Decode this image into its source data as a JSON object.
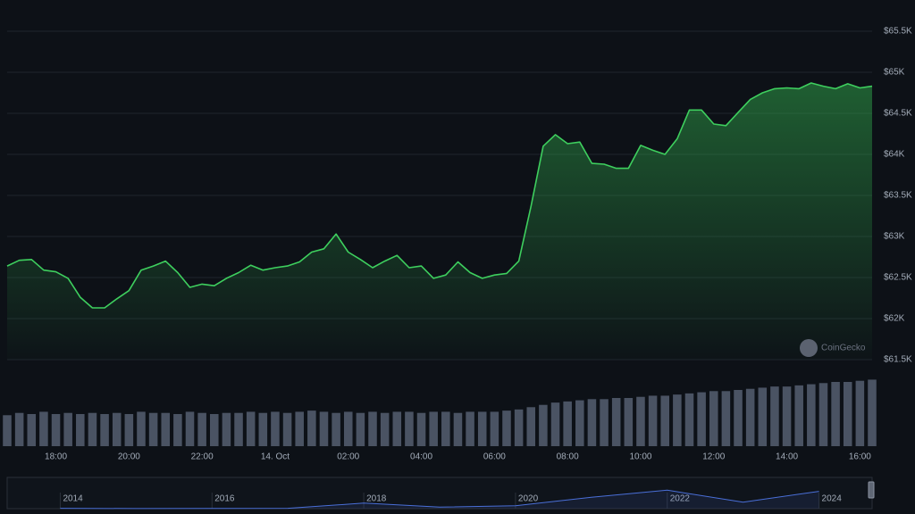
{
  "chart_data": {
    "type": "line",
    "color": "#3ecf5e",
    "grid": true,
    "watermark": "CoinGecko",
    "x": [
      "13. Oct 16:40",
      "13. Oct 17:00",
      "13. Oct 17:20",
      "13. Oct 17:40",
      "13. Oct 18:00",
      "13. Oct 18:20",
      "13. Oct 18:40",
      "13. Oct 19:00",
      "13. Oct 19:20",
      "13. Oct 19:40",
      "13. Oct 20:00",
      "13. Oct 20:20",
      "13. Oct 20:40",
      "13. Oct 21:00",
      "13. Oct 21:20",
      "13. Oct 21:40",
      "13. Oct 22:00",
      "13. Oct 22:20",
      "13. Oct 22:40",
      "13. Oct 23:00",
      "13. Oct 23:20",
      "13. Oct 23:40",
      "14. Oct 00:00",
      "14. Oct 00:20",
      "14. Oct 00:40",
      "14. Oct 01:00",
      "14. Oct 01:20",
      "14. Oct 01:40",
      "14. Oct 02:00",
      "14. Oct 02:20",
      "14. Oct 02:40",
      "14. Oct 03:00",
      "14. Oct 03:20",
      "14. Oct 03:40",
      "14. Oct 04:00",
      "14. Oct 04:20",
      "14. Oct 04:40",
      "14. Oct 05:00",
      "14. Oct 05:20",
      "14. Oct 05:40",
      "14. Oct 06:00",
      "14. Oct 06:20",
      "14. Oct 06:40",
      "14. Oct 07:00",
      "14. Oct 07:20",
      "14. Oct 07:40",
      "14. Oct 08:00",
      "14. Oct 08:20",
      "14. Oct 08:40",
      "14. Oct 09:00",
      "14. Oct 09:20",
      "14. Oct 09:40",
      "14. Oct 10:00",
      "14. Oct 10:20",
      "14. Oct 10:40",
      "14. Oct 11:00",
      "14. Oct 11:20",
      "14. Oct 11:40",
      "14. Oct 12:00",
      "14. Oct 12:20",
      "14. Oct 12:40",
      "14. Oct 13:00",
      "14. Oct 13:20",
      "14. Oct 13:40",
      "14. Oct 14:00",
      "14. Oct 14:20",
      "14. Oct 14:40",
      "14. Oct 15:00",
      "14. Oct 15:20",
      "14. Oct 15:40",
      "14. Oct 16:00",
      "14. Oct 16:20"
    ],
    "values": [
      62640,
      62710,
      62720,
      62590,
      62570,
      62490,
      62260,
      62130,
      62130,
      62240,
      62340,
      62590,
      62640,
      62700,
      62560,
      62380,
      62420,
      62400,
      62490,
      62560,
      62650,
      62590,
      62620,
      62640,
      62690,
      62810,
      62850,
      63030,
      62810,
      62720,
      62620,
      62700,
      62770,
      62620,
      62640,
      62490,
      62530,
      62690,
      62560,
      62490,
      62530,
      62550,
      62700,
      63370,
      64100,
      64240,
      64130,
      64150,
      63890,
      63880,
      63830,
      63830,
      64110,
      64050,
      64000,
      64190,
      64540,
      64540,
      64370,
      64350,
      64510,
      64670,
      64750,
      64800,
      64810,
      64800,
      64870,
      64830,
      64800,
      64860,
      64810,
      64830
    ],
    "ylim": [
      61500,
      65500
    ],
    "yticks": [
      {
        "value": 61500,
        "label": "$61.5K"
      },
      {
        "value": 62000,
        "label": "$62K"
      },
      {
        "value": 62500,
        "label": "$62.5K"
      },
      {
        "value": 63000,
        "label": "$63K"
      },
      {
        "value": 63500,
        "label": "$63.5K"
      },
      {
        "value": 64000,
        "label": "$64K"
      },
      {
        "value": 64500,
        "label": "$64.5K"
      },
      {
        "value": 65000,
        "label": "$65K"
      },
      {
        "value": 65500,
        "label": "$65.5K"
      }
    ],
    "xticks": [
      {
        "value": "13. Oct 18:00",
        "label": "18:00"
      },
      {
        "value": "13. Oct 20:00",
        "label": "20:00"
      },
      {
        "value": "13. Oct 22:00",
        "label": "22:00"
      },
      {
        "value": "14. Oct 00:00",
        "label": "14. Oct"
      },
      {
        "value": "14. Oct 02:00",
        "label": "02:00"
      },
      {
        "value": "14. Oct 04:00",
        "label": "04:00"
      },
      {
        "value": "14. Oct 06:00",
        "label": "06:00"
      },
      {
        "value": "14. Oct 08:00",
        "label": "08:00"
      },
      {
        "value": "14. Oct 10:00",
        "label": "10:00"
      },
      {
        "value": "14. Oct 12:00",
        "label": "12:00"
      },
      {
        "value": "14. Oct 14:00",
        "label": "14:00"
      },
      {
        "value": "14. Oct 16:00",
        "label": "16:00"
      }
    ],
    "volume": {
      "color": "#4a5363",
      "ylim": [
        0,
        70
      ],
      "values": [
        27,
        29,
        28,
        30,
        28,
        29,
        28,
        29,
        28,
        29,
        28,
        30,
        29,
        29,
        28,
        30,
        29,
        28,
        29,
        29,
        30,
        29,
        30,
        29,
        30,
        31,
        30,
        29,
        30,
        29,
        30,
        29,
        30,
        30,
        29,
        30,
        30,
        29,
        30,
        30,
        30,
        31,
        32,
        34,
        36,
        38,
        39,
        40,
        41,
        41,
        42,
        42,
        43,
        44,
        44,
        45,
        46,
        47,
        48,
        48,
        49,
        50,
        51,
        52,
        52,
        53,
        54,
        55,
        56,
        56,
        57,
        58
      ]
    },
    "navigator": {
      "color": "#4a6fd8",
      "x": [
        2014,
        2015,
        2016,
        2017,
        2018,
        2019,
        2020,
        2021,
        2022,
        2023,
        2024
      ],
      "values": [
        800,
        300,
        430,
        1000,
        14000,
        3800,
        7200,
        29000,
        47000,
        16600,
        44000
      ],
      "xlim": [
        2013.3,
        2024.7
      ],
      "ylim": [
        0,
        75000
      ],
      "xticks": [
        2014,
        2016,
        2018,
        2020,
        2022,
        2024
      ]
    }
  }
}
